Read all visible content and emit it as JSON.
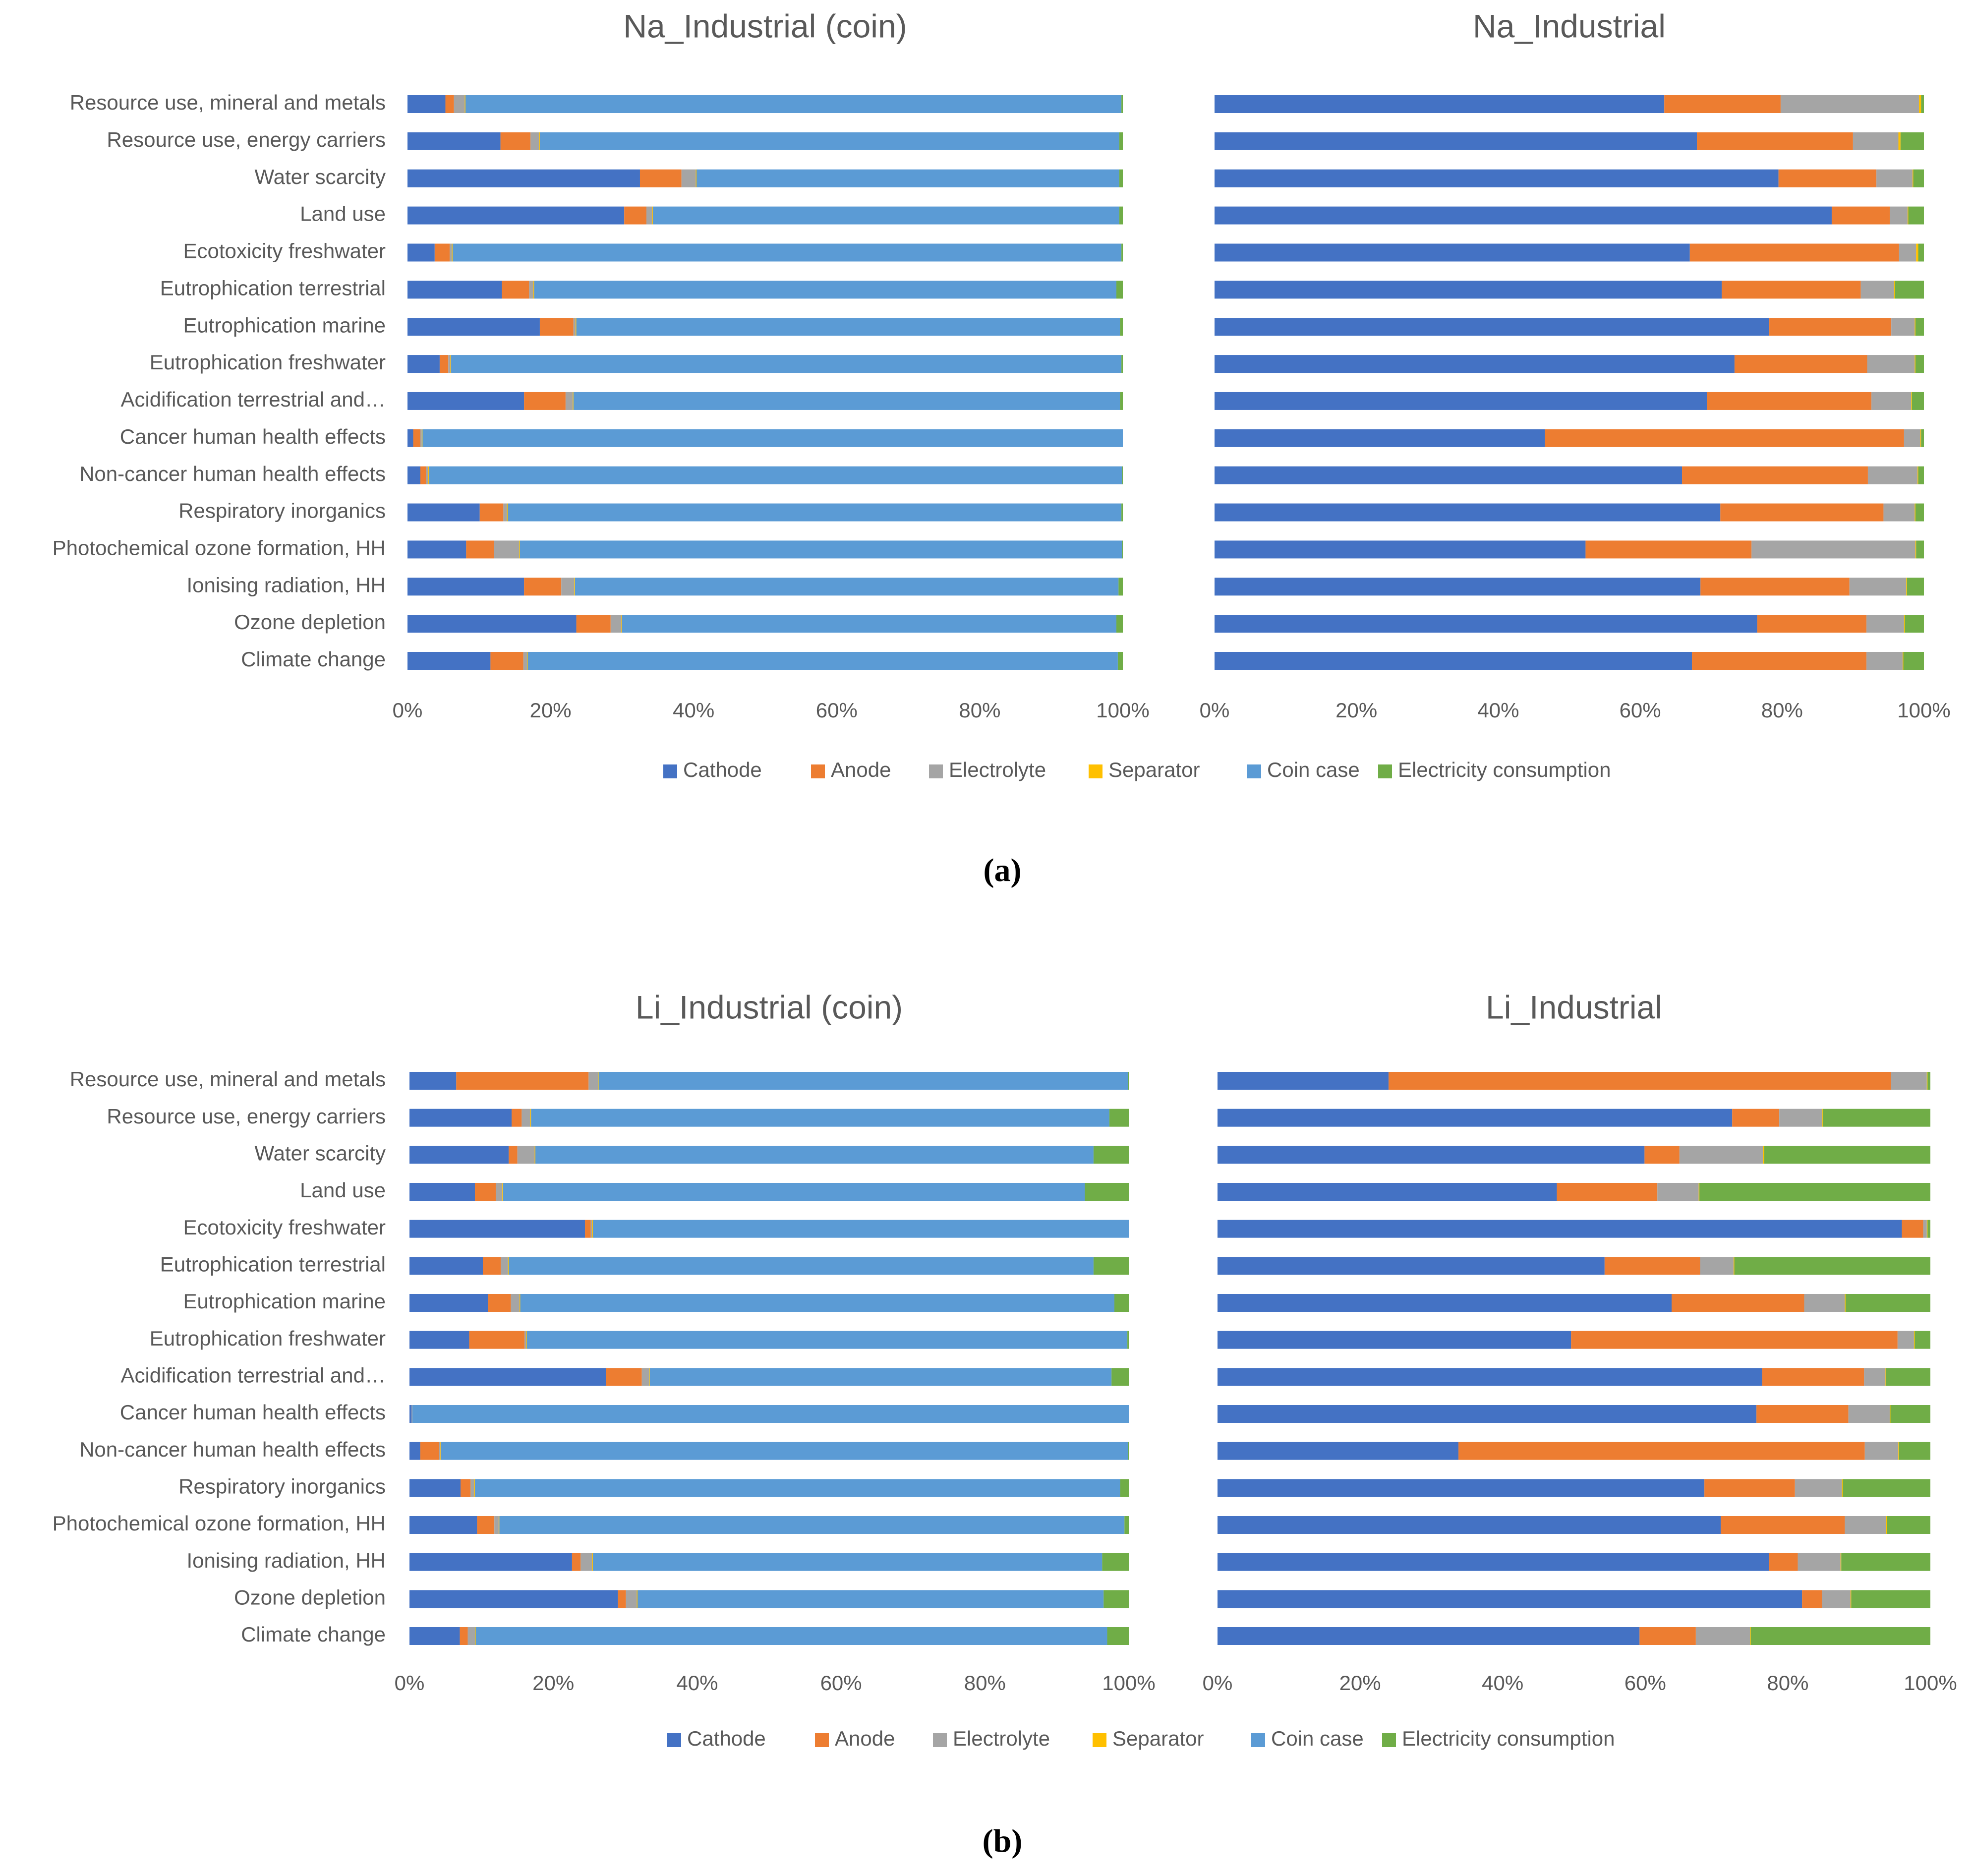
{
  "figure": {
    "panel_captions": [
      "(a)",
      "(b)"
    ],
    "legend": [
      {
        "label": "Cathode",
        "color": "#4472C4"
      },
      {
        "label": "Anode",
        "color": "#ED7D31"
      },
      {
        "label": "Electrolyte",
        "color": "#A5A5A5"
      },
      {
        "label": "Separator",
        "color": "#FFC000"
      },
      {
        "label": "Coin case",
        "color": "#5B9BD5"
      },
      {
        "label": "Electricity consumption",
        "color": "#70AD47"
      }
    ]
  },
  "chart_data": [
    {
      "type": "bar",
      "orientation": "horizontal-stacked-100",
      "title": "Na_Industrial (coin)",
      "xlim": [
        0,
        100
      ],
      "xticks": [
        "0%",
        "20%",
        "40%",
        "60%",
        "80%",
        "100%"
      ],
      "categories": [
        "Resource use, mineral and metals",
        "Resource use, energy carriers",
        "Water scarcity",
        "Land use",
        "Ecotoxicity freshwater",
        "Eutrophication terrestrial",
        "Eutrophication marine",
        "Eutrophication freshwater",
        "Acidification terrestrial and…",
        "Cancer human health effects",
        "Non-cancer human health effects",
        "Respiratory inorganics",
        "Photochemical ozone formation, HH",
        "Ionising radiation, HH",
        "Ozone depletion",
        "Climate change"
      ],
      "series": [
        {
          "name": "Cathode",
          "values": [
            5.3,
            13.0,
            32.5,
            30.3,
            3.8,
            13.2,
            18.5,
            4.5,
            16.3,
            0.8,
            1.8,
            10.1,
            8.2,
            16.3,
            23.6,
            11.6
          ]
        },
        {
          "name": "Anode",
          "values": [
            1.2,
            4.2,
            5.8,
            3.1,
            2.1,
            3.8,
            4.7,
            1.2,
            5.8,
            1.0,
            0.8,
            3.3,
            3.9,
            5.2,
            4.8,
            4.6
          ]
        },
        {
          "name": "Electrolyte",
          "values": [
            1.5,
            1.2,
            2.0,
            0.8,
            0.3,
            0.6,
            0.3,
            0.3,
            1.0,
            0.2,
            0.3,
            0.5,
            3.5,
            1.8,
            1.5,
            0.5
          ]
        },
        {
          "name": "Separator",
          "values": [
            0.1,
            0.1,
            0.1,
            0.1,
            0.1,
            0.1,
            0.1,
            0.1,
            0.1,
            0.1,
            0.1,
            0.1,
            0.1,
            0.1,
            0.1,
            0.1
          ]
        },
        {
          "name": "Coin case",
          "values": [
            91.7,
            81.0,
            59.1,
            65.2,
            93.5,
            81.4,
            76.0,
            93.7,
            76.4,
            97.9,
            96.9,
            85.8,
            84.2,
            76.0,
            69.1,
            82.5
          ]
        },
        {
          "name": "Electricity consumption",
          "values": [
            0.2,
            0.5,
            0.5,
            0.5,
            0.2,
            0.9,
            0.4,
            0.2,
            0.4,
            0.0,
            0.1,
            0.2,
            0.1,
            0.6,
            0.9,
            0.7
          ]
        }
      ]
    },
    {
      "type": "bar",
      "orientation": "horizontal-stacked-100",
      "title": "Na_Industrial",
      "xlim": [
        0,
        100
      ],
      "xticks": [
        "0%",
        "20%",
        "40%",
        "60%",
        "80%",
        "100%"
      ],
      "categories": [
        "Resource use, mineral and metals",
        "Resource use, energy carriers",
        "Water scarcity",
        "Land use",
        "Ecotoxicity freshwater",
        "Eutrophication terrestrial",
        "Eutrophication marine",
        "Eutrophication freshwater",
        "Acidification terrestrial and…",
        "Cancer human health effects",
        "Non-cancer human health effects",
        "Respiratory inorganics",
        "Photochemical ozone formation, HH",
        "Ionising radiation, HH",
        "Ozone depletion",
        "Climate change"
      ],
      "series": [
        {
          "name": "Cathode",
          "values": [
            63.4,
            68.0,
            79.5,
            87.0,
            67.0,
            71.5,
            78.2,
            73.3,
            69.4,
            46.6,
            65.9,
            71.3,
            52.3,
            68.5,
            76.5,
            67.3
          ]
        },
        {
          "name": "Anode",
          "values": [
            16.4,
            22.0,
            13.8,
            8.2,
            29.5,
            19.6,
            17.2,
            18.7,
            23.2,
            50.6,
            26.2,
            23.0,
            23.4,
            21.0,
            15.4,
            24.6
          ]
        },
        {
          "name": "Electrolyte",
          "values": [
            19.5,
            6.4,
            5.1,
            2.5,
            2.4,
            4.7,
            3.3,
            6.7,
            5.6,
            2.3,
            7.0,
            4.4,
            23.1,
            8.0,
            5.3,
            5.1
          ]
        },
        {
          "name": "Separator",
          "values": [
            0.3,
            0.3,
            0.1,
            0.1,
            0.3,
            0.1,
            0.1,
            0.1,
            0.1,
            0.1,
            0.1,
            0.1,
            0.1,
            0.1,
            0.1,
            0.1
          ]
        },
        {
          "name": "Coin case",
          "values": [
            0,
            0,
            0,
            0,
            0,
            0,
            0,
            0,
            0,
            0,
            0,
            0,
            0,
            0,
            0,
            0
          ]
        },
        {
          "name": "Electricity consumption",
          "values": [
            0.4,
            3.3,
            1.5,
            2.2,
            0.8,
            4.1,
            1.2,
            1.2,
            1.7,
            0.4,
            0.8,
            1.2,
            1.1,
            2.4,
            2.7,
            2.9
          ]
        }
      ]
    },
    {
      "type": "bar",
      "orientation": "horizontal-stacked-100",
      "title": "Li_Industrial (coin)",
      "xlim": [
        0,
        100
      ],
      "xticks": [
        "0%",
        "20%",
        "40%",
        "60%",
        "80%",
        "100%"
      ],
      "categories": [
        "Resource use, mineral and metals",
        "Resource use, energy carriers",
        "Water scarcity",
        "Land use",
        "Ecotoxicity freshwater",
        "Eutrophication terrestrial",
        "Eutrophication marine",
        "Eutrophication freshwater",
        "Acidification terrestrial and…",
        "Cancer human health effects",
        "Non-cancer human health effects",
        "Respiratory inorganics",
        "Photochemical ozone formation, HH",
        "Ionising radiation, HH",
        "Ozone depletion",
        "Climate change"
      ],
      "series": [
        {
          "name": "Cathode",
          "values": [
            6.5,
            14.2,
            13.8,
            9.1,
            24.4,
            10.2,
            10.9,
            8.3,
            27.3,
            0.3,
            1.5,
            7.1,
            9.4,
            22.6,
            29.0,
            7.0
          ]
        },
        {
          "name": "Anode",
          "values": [
            18.4,
            1.4,
            1.2,
            2.9,
            0.8,
            2.5,
            3.2,
            7.7,
            5.0,
            0.0,
            2.6,
            1.4,
            2.4,
            1.2,
            1.1,
            1.1
          ]
        },
        {
          "name": "Electrolyte",
          "values": [
            1.3,
            1.2,
            2.4,
            0.9,
            0.2,
            1.0,
            1.2,
            0.2,
            1.0,
            0.1,
            0.2,
            0.5,
            0.6,
            1.6,
            1.5,
            1.0
          ]
        },
        {
          "name": "Separator",
          "values": [
            0.1,
            0.1,
            0.1,
            0.1,
            0.1,
            0.1,
            0.1,
            0.1,
            0.1,
            0.0,
            0.1,
            0.1,
            0.1,
            0.1,
            0.1,
            0.1
          ]
        },
        {
          "name": "Coin case",
          "values": [
            73.6,
            80.4,
            77.6,
            80.9,
            74.5,
            81.3,
            82.6,
            83.5,
            64.2,
            99.6,
            95.5,
            89.7,
            86.9,
            70.8,
            64.8,
            87.8
          ]
        },
        {
          "name": "Electricity consumption",
          "values": [
            0.1,
            2.7,
            4.9,
            6.1,
            0.0,
            4.9,
            2.0,
            0.2,
            2.4,
            0.0,
            0.1,
            1.2,
            0.6,
            3.7,
            3.5,
            3.0
          ]
        }
      ]
    },
    {
      "type": "bar",
      "orientation": "horizontal-stacked-100",
      "title": "Li_Industrial",
      "xlim": [
        0,
        100
      ],
      "xticks": [
        "0%",
        "20%",
        "40%",
        "60%",
        "80%",
        "100%"
      ],
      "categories": [
        "Resource use, mineral and metals",
        "Resource use, energy carriers",
        "Water scarcity",
        "Land use",
        "Ecotoxicity freshwater",
        "Eutrophication terrestrial",
        "Eutrophication marine",
        "Eutrophication freshwater",
        "Acidification terrestrial and…",
        "Cancer human health effects",
        "Non-cancer human health effects",
        "Respiratory inorganics",
        "Photochemical ozone formation, HH",
        "Ionising radiation, HH",
        "Ozone depletion",
        "Climate change"
      ],
      "series": [
        {
          "name": "Cathode",
          "values": [
            24.0,
            72.2,
            59.9,
            47.6,
            96.0,
            54.3,
            63.7,
            49.6,
            76.4,
            75.6,
            33.8,
            68.3,
            70.6,
            77.4,
            82.0,
            59.2
          ]
        },
        {
          "name": "Anode",
          "values": [
            70.5,
            6.6,
            4.9,
            14.1,
            3.0,
            13.4,
            18.6,
            45.8,
            14.3,
            12.9,
            57.0,
            12.7,
            17.4,
            4.0,
            2.8,
            7.9
          ]
        },
        {
          "name": "Electrolyte",
          "values": [
            5.0,
            6.0,
            11.7,
            5.8,
            0.5,
            4.7,
            5.7,
            2.3,
            3.0,
            5.8,
            4.7,
            6.6,
            5.8,
            6.0,
            4.0,
            7.6
          ]
        },
        {
          "name": "Separator",
          "values": [
            0.1,
            0.1,
            0.2,
            0.1,
            0.1,
            0.1,
            0.1,
            0.1,
            0.1,
            0.1,
            0.1,
            0.1,
            0.1,
            0.1,
            0.1,
            0.1
          ]
        },
        {
          "name": "Coin case",
          "values": [
            0,
            0,
            0,
            0,
            0,
            0,
            0,
            0,
            0,
            0,
            0,
            0,
            0,
            0,
            0,
            0
          ]
        },
        {
          "name": "Electricity consumption",
          "values": [
            0.4,
            15.1,
            23.3,
            32.4,
            0.4,
            27.5,
            11.9,
            2.2,
            6.2,
            5.6,
            4.4,
            12.3,
            6.1,
            12.5,
            11.1,
            25.2
          ]
        }
      ]
    }
  ]
}
